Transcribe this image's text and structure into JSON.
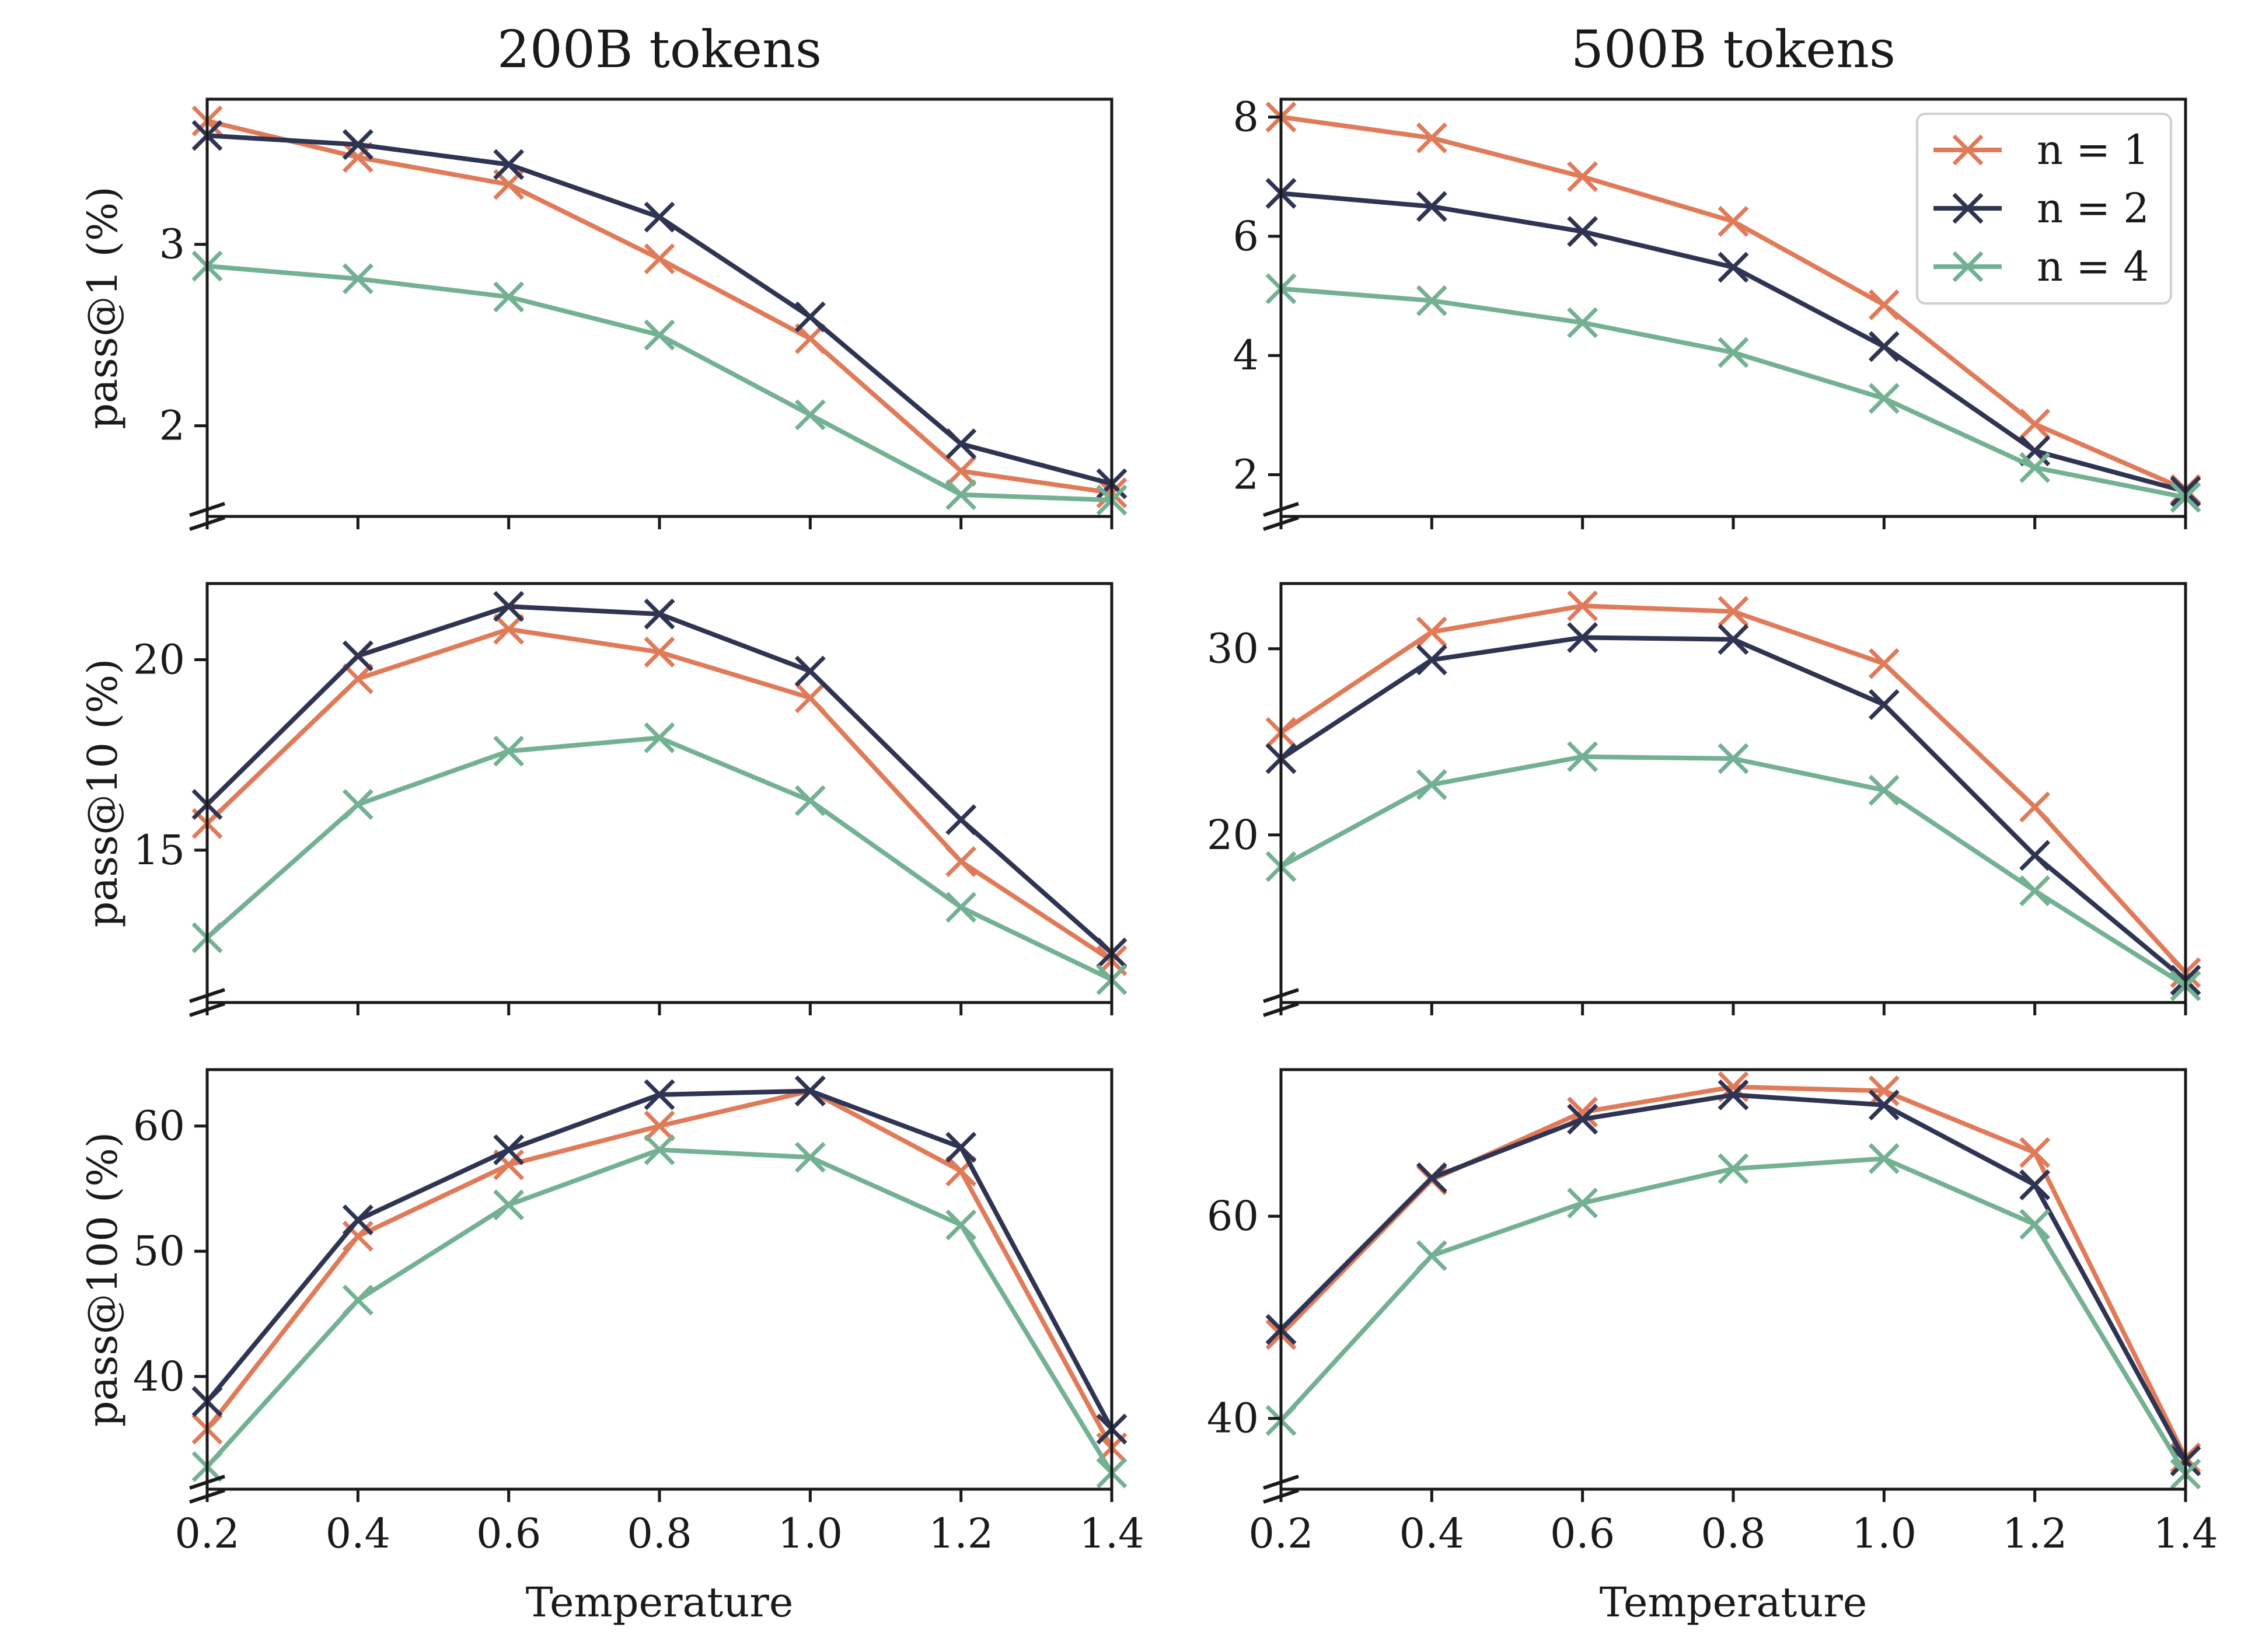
{
  "colors": {
    "n1": "#E07B5A",
    "n2": "#2F3453",
    "n4": "#74B193",
    "axis": "#1a1a1a"
  },
  "legend": [
    {
      "key": "n1",
      "label": "n = 1"
    },
    {
      "key": "n2",
      "label": "n = 2"
    },
    {
      "key": "n4",
      "label": "n = 4"
    }
  ],
  "chart_data": [
    {
      "type": "line",
      "column_title": "200B tokens",
      "ylabel": "pass@1 (%)",
      "xlabel": "",
      "x": [
        0.2,
        0.4,
        0.6,
        0.8,
        1.0,
        1.2,
        1.4
      ],
      "xlim": [
        0.2,
        1.4
      ],
      "ylim": [
        1.5,
        3.8
      ],
      "yticks": [
        2,
        3
      ],
      "broken_axis": true,
      "legend": false,
      "series": [
        {
          "name": "n = 1",
          "key": "n1",
          "values": [
            3.68,
            3.48,
            3.33,
            2.92,
            2.48,
            1.75,
            1.63
          ]
        },
        {
          "name": "n = 2",
          "key": "n2",
          "values": [
            3.6,
            3.55,
            3.44,
            3.15,
            2.6,
            1.9,
            1.68
          ]
        },
        {
          "name": "n = 4",
          "key": "n4",
          "values": [
            2.88,
            2.81,
            2.71,
            2.5,
            2.06,
            1.62,
            1.59
          ]
        }
      ]
    },
    {
      "type": "line",
      "column_title": "500B tokens",
      "ylabel": "",
      "xlabel": "",
      "x": [
        0.2,
        0.4,
        0.6,
        0.8,
        1.0,
        1.2,
        1.4
      ],
      "xlim": [
        0.2,
        1.4
      ],
      "ylim": [
        1.3,
        8.3
      ],
      "yticks": [
        2,
        4,
        6,
        8
      ],
      "broken_axis": true,
      "legend": true,
      "legend_position": "top-right",
      "series": [
        {
          "name": "n = 1",
          "key": "n1",
          "values": [
            8.0,
            7.65,
            7.0,
            6.25,
            4.85,
            2.85,
            1.75
          ]
        },
        {
          "name": "n = 2",
          "key": "n2",
          "values": [
            6.72,
            6.5,
            6.08,
            5.48,
            4.15,
            2.4,
            1.72
          ]
        },
        {
          "name": "n = 4",
          "key": "n4",
          "values": [
            5.12,
            4.92,
            4.55,
            4.05,
            3.28,
            2.12,
            1.62
          ]
        }
      ]
    },
    {
      "type": "line",
      "column_title": "",
      "ylabel": "pass@10 (%)",
      "xlabel": "",
      "x": [
        0.2,
        0.4,
        0.6,
        0.8,
        1.0,
        1.2,
        1.4
      ],
      "xlim": [
        0.2,
        1.4
      ],
      "ylim": [
        11.0,
        22.0
      ],
      "yticks": [
        15,
        20
      ],
      "broken_axis": true,
      "legend": false,
      "series": [
        {
          "name": "n = 1",
          "key": "n1",
          "values": [
            15.7,
            19.5,
            20.8,
            20.2,
            19.0,
            14.7,
            12.1
          ]
        },
        {
          "name": "n = 2",
          "key": "n2",
          "values": [
            16.2,
            20.1,
            21.4,
            21.2,
            19.7,
            15.8,
            12.3
          ]
        },
        {
          "name": "n = 4",
          "key": "n4",
          "values": [
            12.7,
            16.2,
            17.6,
            17.95,
            16.3,
            13.5,
            11.6
          ]
        }
      ]
    },
    {
      "type": "line",
      "column_title": "",
      "ylabel": "",
      "xlabel": "",
      "x": [
        0.2,
        0.4,
        0.6,
        0.8,
        1.0,
        1.2,
        1.4
      ],
      "xlim": [
        0.2,
        1.4
      ],
      "ylim": [
        11.0,
        33.5
      ],
      "yticks": [
        20,
        30
      ],
      "broken_axis": true,
      "legend": false,
      "series": [
        {
          "name": "n = 1",
          "key": "n1",
          "values": [
            25.5,
            30.9,
            32.3,
            32.0,
            29.2,
            21.5,
            12.6
          ]
        },
        {
          "name": "n = 2",
          "key": "n2",
          "values": [
            24.1,
            29.4,
            30.6,
            30.5,
            27.0,
            18.9,
            12.2
          ]
        },
        {
          "name": "n = 4",
          "key": "n4",
          "values": [
            18.3,
            22.7,
            24.2,
            24.1,
            22.4,
            17.0,
            11.9
          ]
        }
      ]
    },
    {
      "type": "line",
      "column_title": "",
      "ylabel": "pass@100 (%)",
      "xlabel": "Temperature",
      "x": [
        0.2,
        0.4,
        0.6,
        0.8,
        1.0,
        1.2,
        1.4
      ],
      "xlim": [
        0.2,
        1.4
      ],
      "ylim": [
        31.0,
        64.5
      ],
      "yticks": [
        40,
        50,
        60
      ],
      "broken_axis": true,
      "legend": false,
      "xticks": [
        "0.2",
        "0.4",
        "0.6",
        "0.8",
        "1.0",
        "1.2",
        "1.4"
      ],
      "series": [
        {
          "name": "n = 1",
          "key": "n1",
          "values": [
            35.8,
            51.2,
            56.9,
            60.0,
            62.8,
            56.4,
            34.3
          ]
        },
        {
          "name": "n = 2",
          "key": "n2",
          "values": [
            38.0,
            52.5,
            58.1,
            62.5,
            62.8,
            58.3,
            35.8
          ]
        },
        {
          "name": "n = 4",
          "key": "n4",
          "values": [
            32.8,
            46.1,
            53.7,
            58.1,
            57.5,
            52.1,
            32.3
          ]
        }
      ]
    },
    {
      "type": "line",
      "column_title": "",
      "ylabel": "",
      "xlabel": "Temperature",
      "x": [
        0.2,
        0.4,
        0.6,
        0.8,
        1.0,
        1.2,
        1.4
      ],
      "xlim": [
        0.2,
        1.4
      ],
      "ylim": [
        33.0,
        74.5
      ],
      "yticks": [
        40,
        60
      ],
      "broken_axis": true,
      "legend": false,
      "xticks": [
        "0.2",
        "0.4",
        "0.6",
        "0.8",
        "1.0",
        "1.2",
        "1.4"
      ],
      "series": [
        {
          "name": "n = 1",
          "key": "n1",
          "values": [
            48.3,
            63.6,
            70.3,
            72.8,
            72.4,
            66.3,
            36.1
          ]
        },
        {
          "name": "n = 2",
          "key": "n2",
          "values": [
            48.8,
            63.8,
            69.6,
            72.0,
            71.0,
            63.1,
            35.8
          ]
        },
        {
          "name": "n = 4",
          "key": "n4",
          "values": [
            39.8,
            56.1,
            61.3,
            64.7,
            65.7,
            59.2,
            34.5
          ]
        }
      ]
    }
  ]
}
